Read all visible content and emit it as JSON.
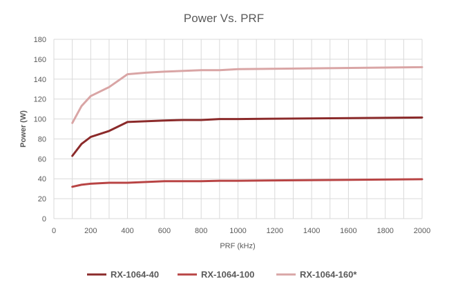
{
  "chart_data": {
    "type": "line",
    "title": "Power Vs. PRF",
    "xlabel": "PRF (kHz)",
    "ylabel": "Power (W)",
    "xlim": [
      0,
      2000
    ],
    "ylim": [
      0,
      180
    ],
    "xticks": [
      0,
      200,
      400,
      600,
      800,
      1000,
      1200,
      1400,
      1600,
      1800,
      2000
    ],
    "yticks": [
      0,
      20,
      40,
      60,
      80,
      100,
      120,
      140,
      160,
      180
    ],
    "grid": true,
    "legend": "bottom",
    "series": [
      {
        "name": "RX-1064-40",
        "color": "#8B2A2A",
        "x": [
          100,
          150,
          200,
          300,
          400,
          600,
          700,
          800,
          900,
          1000,
          2000
        ],
        "y": [
          63,
          75,
          82,
          88,
          97,
          98.5,
          99,
          99,
          100,
          100,
          101.5
        ]
      },
      {
        "name": "RX-1064-100",
        "color": "#B84444",
        "x": [
          100,
          150,
          200,
          300,
          400,
          600,
          800,
          900,
          1000,
          2000
        ],
        "y": [
          32,
          34,
          35,
          36,
          36,
          37.5,
          37.5,
          38,
          38,
          39.5
        ]
      },
      {
        "name": "RX-1064-160*",
        "color": "#D9A5A5",
        "x": [
          100,
          150,
          200,
          300,
          400,
          500,
          600,
          800,
          900,
          1000,
          2000
        ],
        "y": [
          96,
          113,
          123,
          132,
          145,
          146.5,
          147.5,
          149,
          149,
          150,
          152
        ]
      }
    ]
  }
}
